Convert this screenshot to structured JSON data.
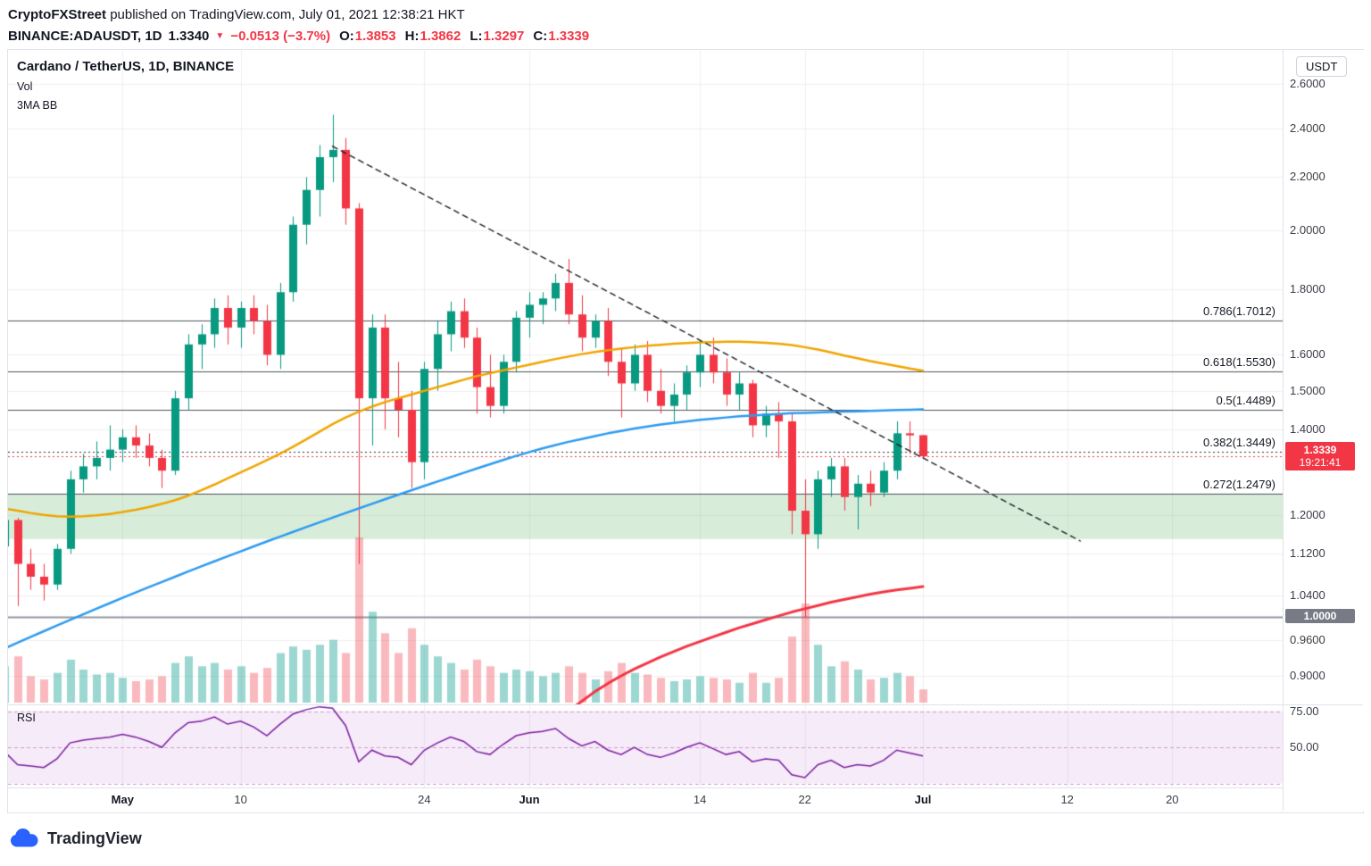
{
  "header": {
    "author": "CryptoFXStreet",
    "published": " published on TradingView.com, July 01, 2021 12:38:21 HKT",
    "symbol_line": {
      "symbol": "BINANCE:ADAUSDT, 1D",
      "last": "1.3340",
      "direction": "▼",
      "change": "−0.0513 (−3.7%)",
      "ohlc": [
        {
          "label": "O:",
          "value": "1.3853"
        },
        {
          "label": "H:",
          "value": "1.3862"
        },
        {
          "label": "L:",
          "value": "1.3297"
        },
        {
          "label": "C:",
          "value": "1.3339"
        }
      ]
    }
  },
  "legend": {
    "title": "Cardano / TetherUS, 1D, BINANCE",
    "vol": "Vol",
    "ma": "3MA BB"
  },
  "rsi_title": "RSI",
  "axis": {
    "currency_button": "USDT",
    "price_labels": [
      {
        "text": "2.6000",
        "value": 2.6
      },
      {
        "text": "2.4000",
        "value": 2.4
      },
      {
        "text": "2.2000",
        "value": 2.2
      },
      {
        "text": "2.0000",
        "value": 2.0
      },
      {
        "text": "1.8000",
        "value": 1.8
      },
      {
        "text": "1.6000",
        "value": 1.6
      },
      {
        "text": "1.5000",
        "value": 1.5
      },
      {
        "text": "1.4000",
        "value": 1.4
      },
      {
        "text": "1.2000",
        "value": 1.2
      },
      {
        "text": "1.1200",
        "value": 1.12
      },
      {
        "text": "1.0400",
        "value": 1.04
      },
      {
        "text": "0.9600",
        "value": 0.96
      },
      {
        "text": "0.9000",
        "value": 0.9
      }
    ],
    "last_price_badge": {
      "price": "1.3339",
      "countdown": "19:21:41",
      "value": 1.3339,
      "color": "#f23645"
    },
    "level_badge": {
      "text": "1.0000",
      "value": 1.0,
      "color": "#787b86"
    },
    "rsi_labels": [
      {
        "text": "75.00",
        "value": 75
      },
      {
        "text": "50.00",
        "value": 50
      }
    ],
    "time_labels": [
      {
        "text": "May",
        "i": 9,
        "month": true
      },
      {
        "text": "10",
        "i": 18
      },
      {
        "text": "24",
        "i": 32
      },
      {
        "text": "Jun",
        "i": 40,
        "month": true
      },
      {
        "text": "14",
        "i": 53
      },
      {
        "text": "22",
        "i": 61
      },
      {
        "text": "Jul",
        "i": 70,
        "month": true
      },
      {
        "text": "12",
        "i": 81
      },
      {
        "text": "20",
        "i": 89
      }
    ]
  },
  "footer": {
    "brand": "TradingView"
  },
  "chart_data": {
    "type": "candlestick",
    "symbol": "ADAUSDT",
    "exchange": "BINANCE",
    "interval": "1D",
    "price_scale": "log",
    "ylim": {
      "top": 2.76,
      "bottom": 0.86
    },
    "panes": [
      "price+volume",
      "rsi"
    ],
    "colors": {
      "up": "#089981",
      "down": "#f23645",
      "vol_up": "rgba(38,166,154,0.45)",
      "vol_down": "rgba(242,54,69,0.35)",
      "ma_yellow": "#f0a500",
      "ma_blue": "#2d9bf0",
      "ma_red": "#f23645",
      "rsi_line": "#7b1fa2",
      "rsi_band_fill": "rgba(186,104,200,0.13)",
      "rsi_band_line": "#cf9ecf",
      "zone_fill": "rgba(76,175,80,0.22)",
      "level_line": "#9598a1",
      "fib_line": "#50535e",
      "trendline": "#1b1f27"
    },
    "candle_columns": [
      "date",
      "open",
      "high",
      "low",
      "close",
      "volume_rel",
      "rsi"
    ],
    "candles": [
      [
        "Apr 22",
        1.135,
        1.2,
        1.1,
        1.19,
        22,
        47
      ],
      [
        "Apr 23",
        1.19,
        1.195,
        1.02,
        1.1,
        28,
        38
      ],
      [
        "Apr 24",
        1.1,
        1.13,
        1.05,
        1.075,
        16,
        37
      ],
      [
        "Apr 25",
        1.075,
        1.1,
        1.03,
        1.06,
        14,
        36
      ],
      [
        "Apr 26",
        1.06,
        1.14,
        1.05,
        1.13,
        18,
        42
      ],
      [
        "Apr 27",
        1.13,
        1.3,
        1.12,
        1.28,
        26,
        53
      ],
      [
        "Apr 28",
        1.28,
        1.34,
        1.25,
        1.31,
        20,
        55
      ],
      [
        "Apr 29",
        1.31,
        1.37,
        1.28,
        1.33,
        17,
        56
      ],
      [
        "Apr 30",
        1.33,
        1.41,
        1.3,
        1.35,
        18,
        57
      ],
      [
        "May 1",
        1.35,
        1.4,
        1.32,
        1.38,
        15,
        59
      ],
      [
        "May 2",
        1.38,
        1.41,
        1.33,
        1.36,
        13,
        57
      ],
      [
        "May 3",
        1.36,
        1.39,
        1.31,
        1.33,
        14,
        54
      ],
      [
        "May 4",
        1.33,
        1.35,
        1.26,
        1.3,
        16,
        50
      ],
      [
        "May 5",
        1.3,
        1.5,
        1.29,
        1.48,
        24,
        60
      ],
      [
        "May 6",
        1.48,
        1.66,
        1.45,
        1.63,
        28,
        67
      ],
      [
        "May 7",
        1.63,
        1.69,
        1.56,
        1.66,
        22,
        68
      ],
      [
        "May 8",
        1.66,
        1.77,
        1.62,
        1.74,
        24,
        71
      ],
      [
        "May 9",
        1.74,
        1.78,
        1.63,
        1.68,
        20,
        66
      ],
      [
        "May 10",
        1.68,
        1.76,
        1.62,
        1.74,
        22,
        68
      ],
      [
        "May 11",
        1.74,
        1.78,
        1.66,
        1.7,
        18,
        64
      ],
      [
        "May 12",
        1.7,
        1.75,
        1.57,
        1.6,
        21,
        58
      ],
      [
        "May 13",
        1.6,
        1.82,
        1.56,
        1.79,
        30,
        66
      ],
      [
        "May 14",
        1.79,
        2.05,
        1.76,
        2.02,
        34,
        73
      ],
      [
        "May 15",
        2.02,
        2.2,
        1.95,
        2.15,
        32,
        76
      ],
      [
        "May 16",
        2.15,
        2.33,
        2.05,
        2.28,
        35,
        78
      ],
      [
        "May 17",
        2.28,
        2.46,
        2.18,
        2.31,
        38,
        77
      ],
      [
        "May 18",
        2.31,
        2.36,
        2.02,
        2.08,
        30,
        65
      ],
      [
        "May 19",
        2.08,
        2.1,
        1.1,
        1.48,
        100,
        40
      ],
      [
        "May 20",
        1.48,
        1.72,
        1.36,
        1.68,
        55,
        48
      ],
      [
        "May 21",
        1.68,
        1.72,
        1.4,
        1.48,
        42,
        44
      ],
      [
        "May 22",
        1.48,
        1.58,
        1.38,
        1.45,
        30,
        43
      ],
      [
        "May 23",
        1.45,
        1.5,
        1.26,
        1.32,
        45,
        38
      ],
      [
        "May 24",
        1.32,
        1.58,
        1.28,
        1.56,
        35,
        48
      ],
      [
        "May 25",
        1.56,
        1.7,
        1.5,
        1.66,
        28,
        53
      ],
      [
        "May 26",
        1.66,
        1.76,
        1.61,
        1.73,
        24,
        57
      ],
      [
        "May 27",
        1.73,
        1.77,
        1.62,
        1.65,
        20,
        54
      ],
      [
        "May 28",
        1.65,
        1.68,
        1.44,
        1.51,
        26,
        47
      ],
      [
        "May 29",
        1.51,
        1.6,
        1.43,
        1.46,
        22,
        45
      ],
      [
        "May 30",
        1.46,
        1.6,
        1.44,
        1.58,
        18,
        52
      ],
      [
        "May 31",
        1.58,
        1.73,
        1.55,
        1.71,
        20,
        58
      ],
      [
        "Jun 1",
        1.71,
        1.79,
        1.65,
        1.75,
        19,
        60
      ],
      [
        "Jun 2",
        1.75,
        1.79,
        1.69,
        1.77,
        16,
        61
      ],
      [
        "Jun 3",
        1.77,
        1.85,
        1.73,
        1.82,
        18,
        63
      ],
      [
        "Jun 4",
        1.82,
        1.9,
        1.69,
        1.72,
        22,
        56
      ],
      [
        "Jun 5",
        1.72,
        1.78,
        1.61,
        1.65,
        18,
        51
      ],
      [
        "Jun 6",
        1.65,
        1.72,
        1.62,
        1.7,
        14,
        54
      ],
      [
        "Jun 7",
        1.7,
        1.74,
        1.54,
        1.58,
        19,
        48
      ],
      [
        "Jun 8",
        1.58,
        1.62,
        1.43,
        1.52,
        24,
        45
      ],
      [
        "Jun 9",
        1.52,
        1.63,
        1.5,
        1.6,
        18,
        50
      ],
      [
        "Jun 10",
        1.6,
        1.64,
        1.47,
        1.5,
        17,
        45
      ],
      [
        "Jun 11",
        1.5,
        1.56,
        1.44,
        1.46,
        15,
        43
      ],
      [
        "Jun 12",
        1.46,
        1.52,
        1.42,
        1.49,
        13,
        46
      ],
      [
        "Jun 13",
        1.49,
        1.57,
        1.45,
        1.55,
        14,
        50
      ],
      [
        "Jun 14",
        1.55,
        1.64,
        1.51,
        1.6,
        16,
        53
      ],
      [
        "Jun 15",
        1.6,
        1.65,
        1.52,
        1.55,
        15,
        49
      ],
      [
        "Jun 16",
        1.55,
        1.59,
        1.46,
        1.49,
        14,
        45
      ],
      [
        "Jun 17",
        1.49,
        1.55,
        1.45,
        1.52,
        12,
        47
      ],
      [
        "Jun 18",
        1.52,
        1.53,
        1.38,
        1.41,
        18,
        40
      ],
      [
        "Jun 19",
        1.41,
        1.46,
        1.38,
        1.44,
        12,
        42
      ],
      [
        "Jun 20",
        1.44,
        1.47,
        1.33,
        1.42,
        15,
        41
      ],
      [
        "Jun 21",
        1.42,
        1.44,
        1.16,
        1.21,
        40,
        31
      ],
      [
        "Jun 22",
        1.21,
        1.28,
        1.0,
        1.16,
        60,
        29
      ],
      [
        "Jun 23",
        1.16,
        1.3,
        1.13,
        1.28,
        35,
        38
      ],
      [
        "Jun 24",
        1.28,
        1.33,
        1.24,
        1.31,
        22,
        41
      ],
      [
        "Jun 25",
        1.31,
        1.33,
        1.21,
        1.24,
        25,
        36
      ],
      [
        "Jun 26",
        1.24,
        1.29,
        1.17,
        1.27,
        20,
        38
      ],
      [
        "Jun 27",
        1.27,
        1.3,
        1.22,
        1.25,
        14,
        37
      ],
      [
        "Jun 28",
        1.25,
        1.32,
        1.24,
        1.3,
        15,
        41
      ],
      [
        "Jun 29",
        1.3,
        1.42,
        1.28,
        1.39,
        18,
        48
      ],
      [
        "Jun 30",
        1.39,
        1.42,
        1.34,
        1.385,
        16,
        46
      ],
      [
        "Jul 1",
        1.3853,
        1.3862,
        1.3297,
        1.3339,
        8,
        44
      ]
    ],
    "overlays": {
      "ma_yellow": [
        1.215,
        1.21,
        1.205,
        1.201,
        1.198,
        1.197,
        1.198,
        1.2,
        1.203,
        1.207,
        1.212,
        1.218,
        1.225,
        1.233,
        1.243,
        1.255,
        1.268,
        1.282,
        1.296,
        1.31,
        1.325,
        1.34,
        1.357,
        1.375,
        1.394,
        1.413,
        1.43,
        1.445,
        1.458,
        1.47,
        1.48,
        1.49,
        1.5,
        1.51,
        1.52,
        1.53,
        1.54,
        1.548,
        1.556,
        1.564,
        1.572,
        1.58,
        1.588,
        1.595,
        1.602,
        1.608,
        1.613,
        1.618,
        1.622,
        1.626,
        1.629,
        1.632,
        1.634,
        1.636,
        1.637,
        1.638,
        1.638,
        1.637,
        1.635,
        1.632,
        1.628,
        1.622,
        1.615,
        1.607,
        1.598,
        1.59,
        1.582,
        1.575,
        1.568,
        1.561,
        1.555
      ],
      "ma_blue": [
        0.945,
        0.955,
        0.965,
        0.975,
        0.985,
        0.995,
        1.005,
        1.015,
        1.025,
        1.035,
        1.045,
        1.055,
        1.065,
        1.075,
        1.085,
        1.095,
        1.105,
        1.115,
        1.125,
        1.135,
        1.145,
        1.155,
        1.165,
        1.175,
        1.185,
        1.195,
        1.205,
        1.215,
        1.225,
        1.235,
        1.245,
        1.255,
        1.265,
        1.275,
        1.285,
        1.295,
        1.305,
        1.315,
        1.325,
        1.335,
        1.344,
        1.353,
        1.361,
        1.369,
        1.376,
        1.383,
        1.39,
        1.396,
        1.402,
        1.407,
        1.412,
        1.416,
        1.42,
        1.424,
        1.427,
        1.43,
        1.433,
        1.435,
        1.437,
        1.439,
        1.441,
        1.442,
        1.443,
        1.444,
        1.445,
        1.446,
        1.447,
        1.448,
        1.449,
        1.45,
        1.451
      ],
      "ma_red": [
        null,
        null,
        null,
        null,
        null,
        null,
        null,
        null,
        null,
        null,
        null,
        null,
        null,
        null,
        null,
        null,
        null,
        null,
        null,
        null,
        null,
        null,
        null,
        null,
        null,
        null,
        null,
        null,
        null,
        null,
        null,
        null,
        null,
        null,
        null,
        null,
        null,
        null,
        null,
        null,
        null,
        null,
        0.83,
        0.845,
        0.86,
        0.875,
        0.888,
        0.9,
        0.911,
        0.921,
        0.931,
        0.94,
        0.949,
        0.957,
        0.965,
        0.973,
        0.981,
        0.988,
        0.995,
        1.002,
        1.009,
        1.015,
        1.021,
        1.027,
        1.032,
        1.037,
        1.042,
        1.046,
        1.05,
        1.053,
        1.056
      ]
    },
    "fib_levels": [
      {
        "label": "0.786(1.7012)",
        "value": 1.7012,
        "style": "solid"
      },
      {
        "label": "0.618(1.5530)",
        "value": 1.553,
        "style": "solid"
      },
      {
        "label": "0.5(1.4489)",
        "value": 1.4489,
        "style": "solid"
      },
      {
        "label": "0.382(1.3449)",
        "value": 1.3449,
        "style": "dotted"
      },
      {
        "label": "0.272(1.2479)",
        "value": 1.2479,
        "style": "solid"
      }
    ],
    "support_zone": {
      "from": 1.15,
      "to": 1.2479
    },
    "horizontal_level": {
      "value": 1.0
    },
    "last_price_line": {
      "value": 1.3339
    },
    "trendline": {
      "from_index": 25,
      "from_price": 2.325,
      "to_index": 82,
      "to_price": 1.146
    },
    "rsi": {
      "bands": [
        75,
        50,
        25
      ],
      "band_fill_between": [
        75,
        25
      ]
    }
  }
}
